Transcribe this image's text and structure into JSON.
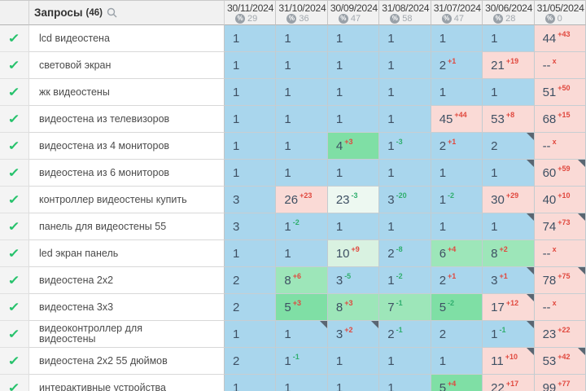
{
  "header": {
    "queries_label": "Запросы",
    "queries_count": "(46)",
    "search_icon": "search-icon",
    "metric_icon": "%",
    "columns": [
      {
        "date": "30/11/2024",
        "metric": "29"
      },
      {
        "date": "31/10/2024",
        "metric": "36"
      },
      {
        "date": "30/09/2024",
        "metric": "47"
      },
      {
        "date": "31/08/2024",
        "metric": "58"
      },
      {
        "date": "31/07/2024",
        "metric": "47"
      },
      {
        "date": "30/06/2024",
        "metric": "28"
      },
      {
        "date": "31/05/2024",
        "metric": "0"
      }
    ]
  },
  "palette": {
    "top3": "#a9d6ed",
    "dropped": "#fadad6",
    "green_strong": "#7fdfa5",
    "green_mid": "#9de6b9",
    "green_pale": "#d9f2e1",
    "green_faint": "#edf8f1",
    "sup_worse": "#e0483e",
    "sup_better": "#2fae6e",
    "checkmark": "#27c26c"
  },
  "rows": [
    {
      "label": "lcd видеостена",
      "checked": true,
      "cells": [
        {
          "v": "1",
          "bg": "blue"
        },
        {
          "v": "1",
          "bg": "blue"
        },
        {
          "v": "1",
          "bg": "blue"
        },
        {
          "v": "1",
          "bg": "blue"
        },
        {
          "v": "1",
          "bg": "blue"
        },
        {
          "v": "1",
          "bg": "blue"
        },
        {
          "v": "44",
          "sup": "+43",
          "supc": "red",
          "bg": "pink"
        }
      ]
    },
    {
      "label": "световой экран",
      "checked": true,
      "cells": [
        {
          "v": "1",
          "bg": "blue"
        },
        {
          "v": "1",
          "bg": "blue"
        },
        {
          "v": "1",
          "bg": "blue"
        },
        {
          "v": "1",
          "bg": "blue"
        },
        {
          "v": "2",
          "sup": "+1",
          "supc": "red",
          "bg": "blue"
        },
        {
          "v": "21",
          "sup": "+19",
          "supc": "red",
          "bg": "pink"
        },
        {
          "v": "--",
          "sup": "x",
          "supc": "red",
          "bg": "pink"
        }
      ]
    },
    {
      "label": "жк видеостены",
      "checked": true,
      "cells": [
        {
          "v": "1",
          "bg": "blue"
        },
        {
          "v": "1",
          "bg": "blue"
        },
        {
          "v": "1",
          "bg": "blue"
        },
        {
          "v": "1",
          "bg": "blue"
        },
        {
          "v": "1",
          "bg": "blue"
        },
        {
          "v": "1",
          "bg": "blue"
        },
        {
          "v": "51",
          "sup": "+50",
          "supc": "red",
          "bg": "pink"
        }
      ]
    },
    {
      "label": "видеостена из телевизоров",
      "checked": true,
      "cells": [
        {
          "v": "1",
          "bg": "blue"
        },
        {
          "v": "1",
          "bg": "blue"
        },
        {
          "v": "1",
          "bg": "blue"
        },
        {
          "v": "1",
          "bg": "blue"
        },
        {
          "v": "45",
          "sup": "+44",
          "supc": "red",
          "bg": "pink"
        },
        {
          "v": "53",
          "sup": "+8",
          "supc": "red",
          "bg": "pink"
        },
        {
          "v": "68",
          "sup": "+15",
          "supc": "red",
          "bg": "pink"
        }
      ]
    },
    {
      "label": "видеостена из 4 мониторов",
      "checked": true,
      "cells": [
        {
          "v": "1",
          "bg": "blue"
        },
        {
          "v": "1",
          "bg": "blue"
        },
        {
          "v": "4",
          "sup": "+3",
          "supc": "red",
          "bg": "g1"
        },
        {
          "v": "1",
          "sup": "-3",
          "supc": "grn",
          "bg": "blue"
        },
        {
          "v": "2",
          "sup": "+1",
          "supc": "red",
          "bg": "blue"
        },
        {
          "v": "2",
          "bg": "blue",
          "corner": true
        },
        {
          "v": "--",
          "sup": "x",
          "supc": "red",
          "bg": "pink"
        }
      ]
    },
    {
      "label": "видеостена из 6 мониторов",
      "checked": true,
      "cells": [
        {
          "v": "1",
          "bg": "blue"
        },
        {
          "v": "1",
          "bg": "blue"
        },
        {
          "v": "1",
          "bg": "blue"
        },
        {
          "v": "1",
          "bg": "blue"
        },
        {
          "v": "1",
          "bg": "blue"
        },
        {
          "v": "1",
          "bg": "blue",
          "corner": true
        },
        {
          "v": "60",
          "sup": "+59",
          "supc": "red",
          "bg": "pink",
          "corner": true
        }
      ]
    },
    {
      "label": "контроллер видеостены купить",
      "checked": true,
      "cells": [
        {
          "v": "3",
          "bg": "blue"
        },
        {
          "v": "26",
          "sup": "+23",
          "supc": "red",
          "bg": "pink"
        },
        {
          "v": "23",
          "sup": "-3",
          "supc": "grn",
          "bg": "g4"
        },
        {
          "v": "3",
          "sup": "-20",
          "supc": "grn",
          "bg": "blue"
        },
        {
          "v": "1",
          "sup": "-2",
          "supc": "grn",
          "bg": "blue"
        },
        {
          "v": "30",
          "sup": "+29",
          "supc": "red",
          "bg": "pink"
        },
        {
          "v": "40",
          "sup": "+10",
          "supc": "red",
          "bg": "pink"
        }
      ]
    },
    {
      "label": "панель для видеостены 55",
      "checked": true,
      "cells": [
        {
          "v": "3",
          "bg": "blue"
        },
        {
          "v": "1",
          "sup": "-2",
          "supc": "grn",
          "bg": "blue"
        },
        {
          "v": "1",
          "bg": "blue"
        },
        {
          "v": "1",
          "bg": "blue"
        },
        {
          "v": "1",
          "bg": "blue"
        },
        {
          "v": "1",
          "bg": "blue",
          "corner": true
        },
        {
          "v": "74",
          "sup": "+73",
          "supc": "red",
          "bg": "pink",
          "corner": true
        }
      ]
    },
    {
      "label": "led экран панель",
      "checked": true,
      "cells": [
        {
          "v": "1",
          "bg": "blue"
        },
        {
          "v": "1",
          "bg": "blue"
        },
        {
          "v": "10",
          "sup": "+9",
          "supc": "red",
          "bg": "g3"
        },
        {
          "v": "2",
          "sup": "-8",
          "supc": "grn",
          "bg": "blue"
        },
        {
          "v": "6",
          "sup": "+4",
          "supc": "red",
          "bg": "g2"
        },
        {
          "v": "8",
          "sup": "+2",
          "supc": "red",
          "bg": "g2"
        },
        {
          "v": "--",
          "sup": "x",
          "supc": "red",
          "bg": "pink"
        }
      ]
    },
    {
      "label": "видеостена 2х2",
      "checked": true,
      "cells": [
        {
          "v": "2",
          "bg": "blue"
        },
        {
          "v": "8",
          "sup": "+6",
          "supc": "red",
          "bg": "g2"
        },
        {
          "v": "3",
          "sup": "-5",
          "supc": "grn",
          "bg": "blue"
        },
        {
          "v": "1",
          "sup": "-2",
          "supc": "grn",
          "bg": "blue"
        },
        {
          "v": "2",
          "sup": "+1",
          "supc": "red",
          "bg": "blue"
        },
        {
          "v": "3",
          "sup": "+1",
          "supc": "red",
          "bg": "blue",
          "corner": true
        },
        {
          "v": "78",
          "sup": "+75",
          "supc": "red",
          "bg": "pink",
          "corner": true
        }
      ]
    },
    {
      "label": "видеостена 3х3",
      "checked": true,
      "cells": [
        {
          "v": "2",
          "bg": "blue"
        },
        {
          "v": "5",
          "sup": "+3",
          "supc": "red",
          "bg": "g1"
        },
        {
          "v": "8",
          "sup": "+3",
          "supc": "red",
          "bg": "g2"
        },
        {
          "v": "7",
          "sup": "-1",
          "supc": "grn",
          "bg": "g2"
        },
        {
          "v": "5",
          "sup": "-2",
          "supc": "grn",
          "bg": "g1"
        },
        {
          "v": "17",
          "sup": "+12",
          "supc": "red",
          "bg": "pink",
          "corner": true
        },
        {
          "v": "--",
          "sup": "x",
          "supc": "red",
          "bg": "pink"
        }
      ]
    },
    {
      "label": "видеоконтроллер для\nвидеостены",
      "checked": true,
      "cells": [
        {
          "v": "1",
          "bg": "blue"
        },
        {
          "v": "1",
          "bg": "blue",
          "corner": true
        },
        {
          "v": "3",
          "sup": "+2",
          "supc": "red",
          "bg": "blue",
          "corner": true
        },
        {
          "v": "2",
          "sup": "-1",
          "supc": "grn",
          "bg": "blue"
        },
        {
          "v": "2",
          "bg": "blue"
        },
        {
          "v": "1",
          "sup": "-1",
          "supc": "grn",
          "bg": "blue",
          "corner": true
        },
        {
          "v": "23",
          "sup": "+22",
          "supc": "red",
          "bg": "pink"
        }
      ]
    },
    {
      "label": "видеостена 2х2 55 дюймов",
      "checked": true,
      "cells": [
        {
          "v": "2",
          "bg": "blue"
        },
        {
          "v": "1",
          "sup": "-1",
          "supc": "grn",
          "bg": "blue"
        },
        {
          "v": "1",
          "bg": "blue"
        },
        {
          "v": "1",
          "bg": "blue"
        },
        {
          "v": "1",
          "bg": "blue"
        },
        {
          "v": "11",
          "sup": "+10",
          "supc": "red",
          "bg": "pink",
          "corner": true
        },
        {
          "v": "53",
          "sup": "+42",
          "supc": "red",
          "bg": "pink",
          "corner": true
        }
      ]
    },
    {
      "label": "интерактивные устройства",
      "checked": true,
      "cells": [
        {
          "v": "1",
          "bg": "blue"
        },
        {
          "v": "1",
          "bg": "blue"
        },
        {
          "v": "1",
          "bg": "blue"
        },
        {
          "v": "1",
          "bg": "blue"
        },
        {
          "v": "5",
          "sup": "+4",
          "supc": "red",
          "bg": "g1"
        },
        {
          "v": "22",
          "sup": "+17",
          "supc": "red",
          "bg": "pink"
        },
        {
          "v": "99",
          "sup": "+77",
          "supc": "red",
          "bg": "pink"
        }
      ]
    }
  ]
}
